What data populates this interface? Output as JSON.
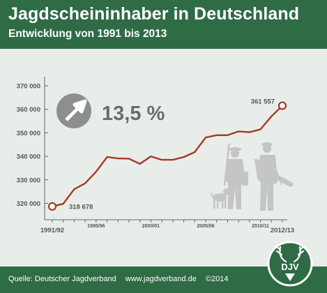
{
  "header": {
    "title": "Jagdscheininhaber in Deutschland",
    "subtitle": "Entwicklung von 1991 bis 2013"
  },
  "callout": {
    "value": "13,5 %",
    "icon": "arrow-up-right-icon"
  },
  "footer": {
    "source": "Quelle: Deutscher Jagdverband",
    "url": "www.jagdverband.de",
    "copyright": "©2014"
  },
  "logo": {
    "text": "DJV"
  },
  "colors": {
    "brand": "#2f6b45",
    "line": "#a33a26",
    "background": "#e9edea",
    "text": "#555555"
  },
  "chart_data": {
    "type": "line",
    "x": [
      "1991/92",
      "1992/93",
      "1993/94",
      "1994/95",
      "1995/96",
      "1996/97",
      "1997/98",
      "1998/99",
      "1999/00",
      "2000/01",
      "2001/02",
      "2002/03",
      "2003/04",
      "2004/05",
      "2005/06",
      "2006/07",
      "2007/08",
      "2008/09",
      "2009/10",
      "2010/11",
      "2011/12",
      "2012/13"
    ],
    "y": [
      318678,
      319800,
      326000,
      328500,
      333500,
      339700,
      339100,
      339000,
      336800,
      340000,
      338500,
      338500,
      339700,
      341800,
      348000,
      349000,
      349000,
      350600,
      350300,
      351500,
      357000,
      361557
    ],
    "xtick_labels": [
      {
        "label": "1991/92",
        "index": 0,
        "bold": true
      },
      {
        "label": "1995/96",
        "index": 4,
        "bold": false
      },
      {
        "label": "2000/01",
        "index": 9,
        "bold": false
      },
      {
        "label": "2005/06",
        "index": 14,
        "bold": false
      },
      {
        "label": "2010/11",
        "index": 19,
        "bold": false
      },
      {
        "label": "2012/13",
        "index": 21,
        "bold": true
      }
    ],
    "yticks": [
      320000,
      330000,
      340000,
      350000,
      360000,
      370000
    ],
    "ytick_labels": [
      "320 000",
      "330 000",
      "340 000",
      "350 000",
      "360 000",
      "370 000"
    ],
    "ylim": [
      313000,
      371500
    ],
    "annotations": [
      {
        "label": "318 678",
        "index": 0
      },
      {
        "label": "361 557",
        "index": 21
      }
    ],
    "grid": false,
    "xlabel": "",
    "ylabel": ""
  }
}
